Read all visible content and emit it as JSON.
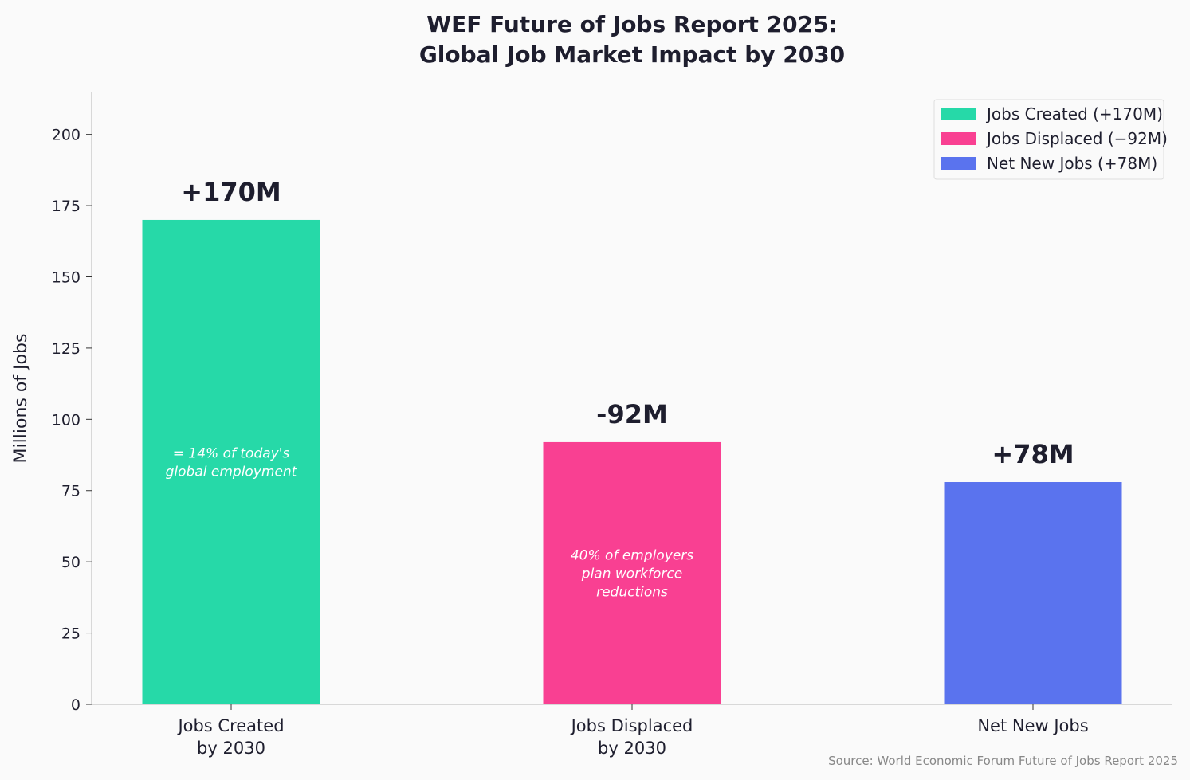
{
  "chart_data": {
    "type": "bar",
    "title": [
      "WEF Future of Jobs Report 2025:",
      "Global Job Market Impact by 2030"
    ],
    "ylabel": "Millions of Jobs",
    "xlabel": "",
    "ylim": [
      0,
      215
    ],
    "yticks": [
      0,
      25,
      50,
      75,
      100,
      125,
      150,
      175,
      200
    ],
    "grid": false,
    "legend_position": "top-right",
    "categories": [
      [
        "Jobs Created",
        "by 2030"
      ],
      [
        "Jobs Displaced",
        "by 2030"
      ],
      [
        "Net New Jobs"
      ]
    ],
    "values": [
      170,
      92,
      78
    ],
    "colors": [
      "#26d9a8",
      "#f94092",
      "#5a73ee"
    ],
    "value_labels": [
      "+170M",
      "-92M",
      "+78M"
    ],
    "annotations": [
      {
        "bar": 0,
        "lines": [
          "= 14% of today's",
          "global employment"
        ]
      },
      {
        "bar": 1,
        "lines": [
          "40% of employers",
          "plan workforce",
          "reductions"
        ]
      }
    ],
    "legend": [
      "Jobs Created (+170M)",
      "Jobs Displaced (−92M)",
      "Net New Jobs (+78M)"
    ],
    "source": "Source: World Economic Forum Future of Jobs Report 2025"
  }
}
